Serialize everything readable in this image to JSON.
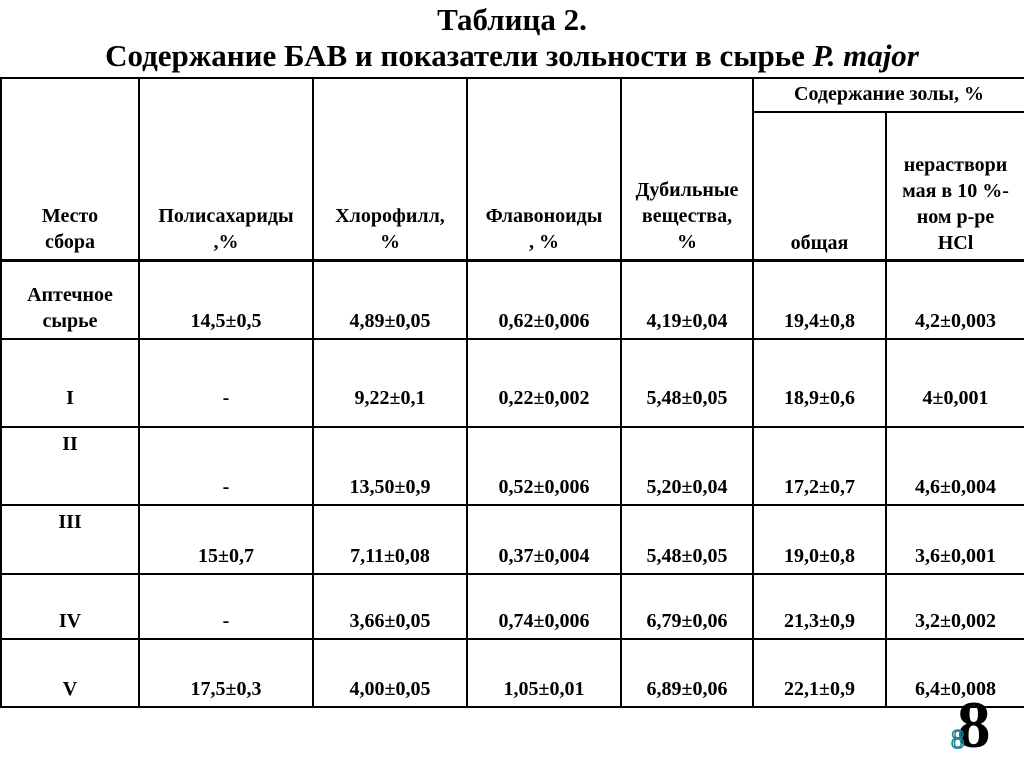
{
  "title": {
    "line1": "Таблица 2.",
    "line2_text": "Содержание БАВ и показатели зольности в сырье ",
    "line2_species": "P. major"
  },
  "table": {
    "ash_group_label": "Содержание золы, %",
    "columns": [
      "Место\nсбора",
      "Полисахариды\n,%",
      "Хлорофилл,\n%",
      "Флавоноиды\n, %",
      "Дубильные\nвещества,\n%",
      "общая",
      "нераствори\nмая в 10 %-\nном р-ре\nHCl"
    ],
    "rows": [
      {
        "place": "Аптечное\nсырье",
        "values": [
          "14,5±0,5",
          "4,89±0,05",
          "0,62±0,006",
          "4,19±0,04",
          "19,4±0,8",
          "4,2±0,003"
        ]
      },
      {
        "place": "I",
        "values": [
          "-",
          "9,22±0,1",
          "0,22±0,002",
          "5,48±0,05",
          "18,9±0,6",
          "4±0,001"
        ]
      },
      {
        "place": "II",
        "values": [
          "-",
          "13,50±0,9",
          "0,52±0,006",
          "5,20±0,04",
          "17,2±0,7",
          "4,6±0,004"
        ]
      },
      {
        "place": "III",
        "values": [
          "15±0,7",
          "7,11±0,08",
          "0,37±0,004",
          "5,48±0,05",
          "19,0±0,8",
          "3,6±0,001"
        ]
      },
      {
        "place": "IV",
        "values": [
          "-",
          "3,66±0,05",
          "0,74±0,006",
          "6,79±0,06",
          "21,3±0,9",
          "3,2±0,002"
        ]
      },
      {
        "place": "V",
        "values": [
          "17,5±0,3",
          "4,00±0,05",
          "1,05±0,01",
          "6,89±0,06",
          "22,1±0,9",
          "6,4±0,008"
        ]
      }
    ]
  },
  "page": {
    "number_large": "8",
    "number_small": "8",
    "accent_color": "#1d8894"
  }
}
